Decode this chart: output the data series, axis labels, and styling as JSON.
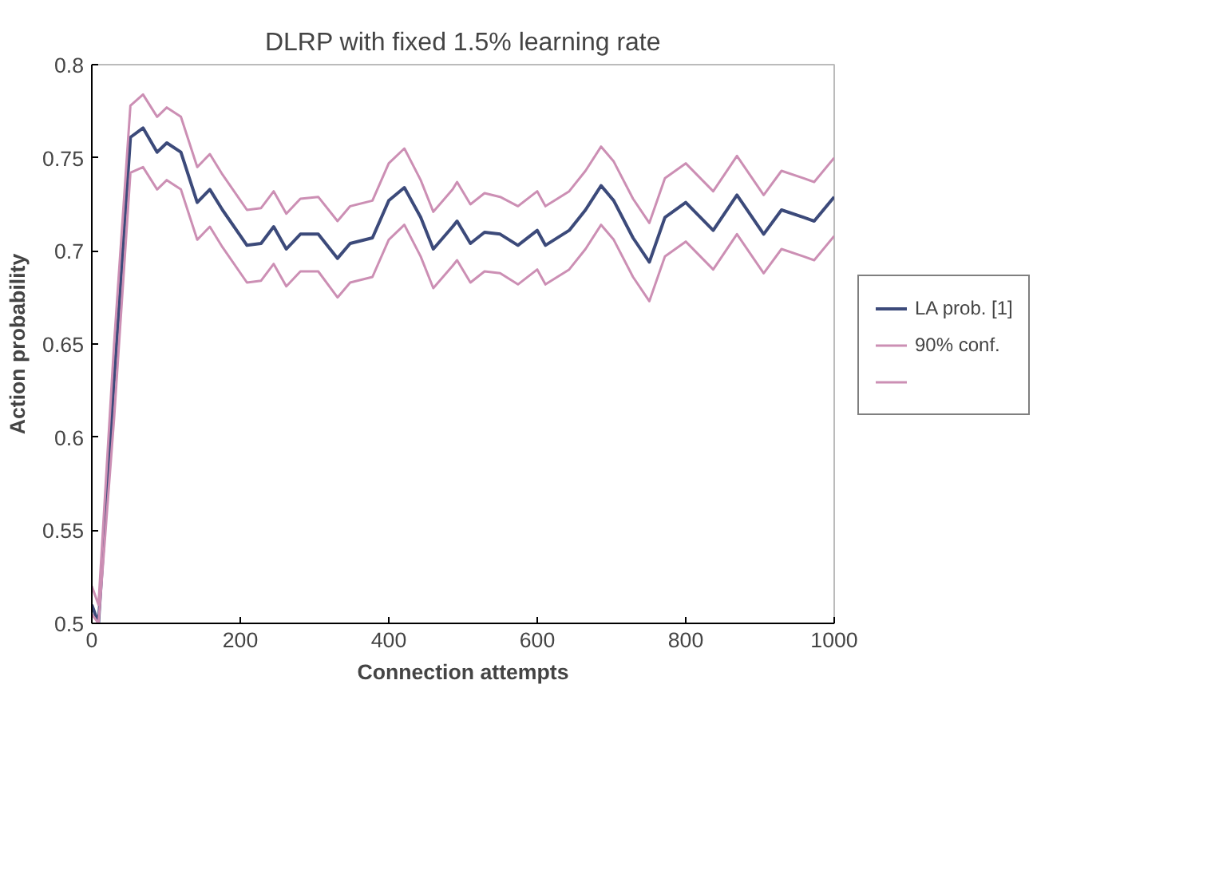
{
  "chart_data": {
    "type": "line",
    "title": "DLRP with fixed 1.5% learning rate",
    "xlabel": "Connection attempts",
    "ylabel": "Action probability",
    "x": [
      0,
      9,
      30,
      52,
      69,
      88,
      101,
      120,
      142,
      159,
      176,
      209,
      228,
      245,
      262,
      281,
      305,
      331,
      348,
      378,
      400,
      421,
      443,
      460,
      486,
      492,
      510,
      529,
      550,
      574,
      600,
      611,
      643,
      665,
      686,
      703,
      729,
      751,
      772,
      800,
      837,
      869,
      905,
      929,
      959,
      973,
      1000
    ],
    "series": [
      {
        "name": "LA prob. [1]",
        "color": "#3c4a7a",
        "values": [
          0.51,
          0.5,
          0.63,
          0.761,
          0.766,
          0.753,
          0.758,
          0.753,
          0.726,
          0.733,
          0.722,
          0.703,
          0.704,
          0.713,
          0.701,
          0.709,
          0.709,
          0.696,
          0.704,
          0.707,
          0.727,
          0.734,
          0.718,
          0.701,
          0.713,
          0.716,
          0.704,
          0.71,
          0.709,
          0.703,
          0.711,
          0.703,
          0.711,
          0.722,
          0.735,
          0.727,
          0.707,
          0.694,
          0.718,
          0.726,
          0.711,
          0.73,
          0.709,
          0.722,
          0.718,
          0.716,
          0.729
        ]
      },
      {
        "name": "90% conf.",
        "color": "#cc8fb4",
        "values": [
          0.52,
          0.51,
          0.65,
          0.778,
          0.784,
          0.772,
          0.777,
          0.772,
          0.745,
          0.752,
          0.741,
          0.722,
          0.723,
          0.732,
          0.72,
          0.728,
          0.729,
          0.716,
          0.724,
          0.727,
          0.747,
          0.755,
          0.738,
          0.721,
          0.733,
          0.737,
          0.725,
          0.731,
          0.729,
          0.724,
          0.732,
          0.724,
          0.732,
          0.743,
          0.756,
          0.748,
          0.728,
          0.715,
          0.739,
          0.747,
          0.732,
          0.751,
          0.73,
          0.743,
          0.739,
          0.737,
          0.75
        ]
      },
      {
        "color": "#cc8fb4",
        "values": [
          0.505,
          0.5,
          0.61,
          0.742,
          0.745,
          0.733,
          0.738,
          0.733,
          0.706,
          0.713,
          0.702,
          0.683,
          0.684,
          0.693,
          0.681,
          0.689,
          0.689,
          0.675,
          0.683,
          0.686,
          0.706,
          0.714,
          0.697,
          0.68,
          0.692,
          0.695,
          0.683,
          0.689,
          0.688,
          0.682,
          0.69,
          0.682,
          0.69,
          0.701,
          0.714,
          0.706,
          0.686,
          0.673,
          0.697,
          0.705,
          0.69,
          0.709,
          0.688,
          0.701,
          0.697,
          0.695,
          0.708
        ]
      }
    ],
    "xlim": [
      0,
      1000
    ],
    "xticks": [
      0,
      200,
      400,
      600,
      800,
      1000
    ],
    "ylim": [
      0.5,
      0.8
    ],
    "yticks": [
      0.5,
      0.55,
      0.6,
      0.65,
      0.7,
      0.75,
      0.8
    ],
    "grid": false,
    "legend": "right",
    "marker": "none",
    "line_style": "solid"
  }
}
